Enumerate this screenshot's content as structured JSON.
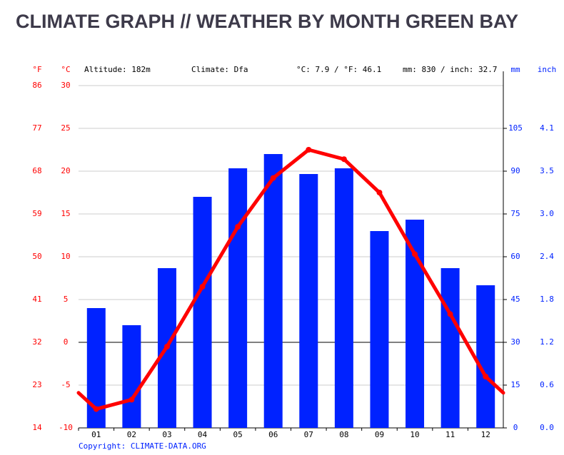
{
  "chart_data": {
    "type": "climate",
    "title": "CLIMATE GRAPH // WEATHER BY MONTH GREEN BAY",
    "info": [
      "Altitude: 182m",
      "Climate: Dfa",
      "°C: 7.9 / °F: 46.1",
      "mm: 830 / inch: 32.7"
    ],
    "copyright": "Copyright: CLIMATE-DATA.ORG",
    "categories": [
      "01",
      "02",
      "03",
      "04",
      "05",
      "06",
      "07",
      "08",
      "09",
      "10",
      "11",
      "12"
    ],
    "y_label": "°C",
    "ylim": [
      -10,
      30
    ],
    "yticks": [
      -10,
      -5,
      0,
      5,
      10,
      15,
      20,
      25,
      30
    ],
    "yf_label": "°F",
    "yflim": [
      14,
      86
    ],
    "yfticks": [
      14,
      23,
      32,
      41,
      50,
      59,
      68,
      77,
      86
    ],
    "y2_label": "mm",
    "y2lim": [
      0,
      120
    ],
    "y2ticks": [
      0,
      15,
      30,
      45,
      60,
      75,
      90,
      105
    ],
    "y3_label": "inch",
    "y3lim": [
      0,
      4.72
    ],
    "y3ticks": [
      {
        "value": 0,
        "label": "0.0"
      },
      {
        "value": 0.59,
        "label": "0.6"
      },
      {
        "value": 1.18,
        "label": "1.2"
      },
      {
        "value": 1.77,
        "label": "1.8"
      },
      {
        "value": 2.36,
        "label": "2.4"
      },
      {
        "value": 2.95,
        "label": "3.0"
      },
      {
        "value": 3.54,
        "label": "3.5"
      },
      {
        "value": 4.13,
        "label": "4.1"
      }
    ],
    "grid": true,
    "series": [
      {
        "type": "bar",
        "axis": "y2",
        "color": "#0022ff",
        "values": [
          42,
          36,
          56,
          81,
          91,
          96,
          89,
          91,
          69,
          73,
          56,
          50
        ]
      },
      {
        "type": "line",
        "axis": "y",
        "color": "#ff0000",
        "values": [
          -7.8,
          -6.7,
          -0.5,
          6.5,
          13.5,
          19.2,
          22.5,
          21.4,
          17.5,
          10.3,
          3.3,
          -4.0
        ]
      }
    ]
  }
}
